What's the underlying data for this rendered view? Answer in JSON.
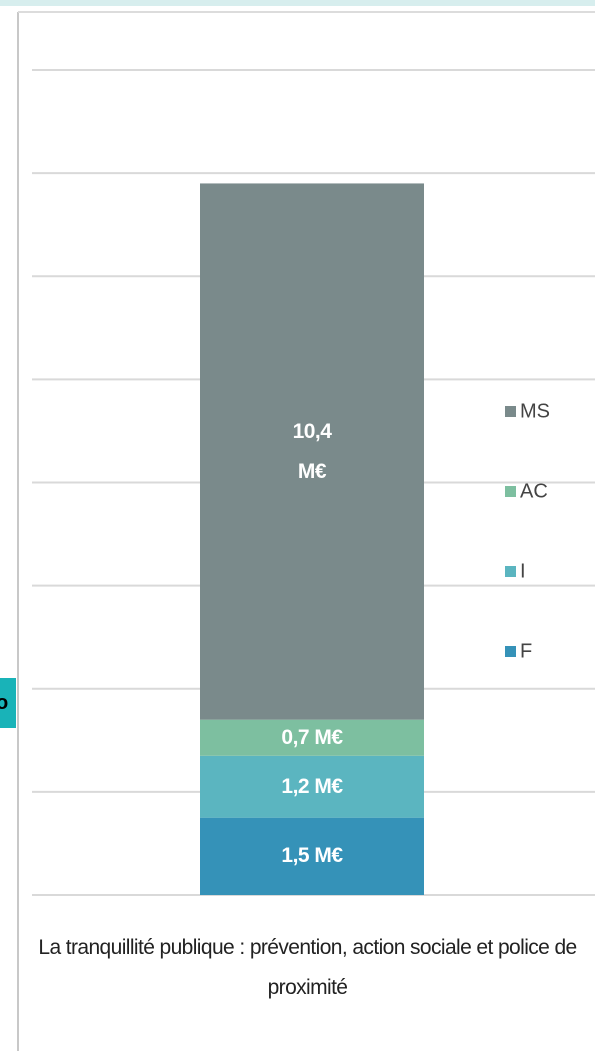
{
  "chart_data": {
    "type": "stacked_bar",
    "categories": [
      "La tranquillité publique : prévention, action sociale et police de proximité"
    ],
    "series": [
      {
        "name": "F",
        "color": "#3592b8",
        "values": [
          1.5
        ],
        "value_labels": [
          "1,5 M€"
        ]
      },
      {
        "name": "I",
        "color": "#5bb5c0",
        "values": [
          1.2
        ],
        "value_labels": [
          "1,2 M€"
        ]
      },
      {
        "name": "AC",
        "color": "#7dbfa0",
        "values": [
          0.7
        ],
        "value_labels": [
          "0,7 M€"
        ]
      },
      {
        "name": "MS",
        "color": "#7a8a8b",
        "values": [
          10.4
        ],
        "value_labels": [
          "10,4 M€"
        ]
      }
    ],
    "ylim": [
      0,
      16
    ],
    "yticks": [
      0,
      2,
      4,
      6,
      8,
      10,
      12,
      14,
      16
    ],
    "grid": true,
    "legend": "right",
    "side_tab_text": "o"
  }
}
